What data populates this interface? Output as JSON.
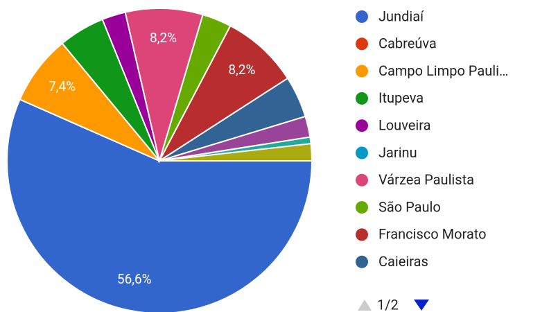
{
  "chart_data": {
    "type": "pie",
    "categories": [
      "Jundiaí",
      "Cabreúva",
      "Campo Limpo Pauli…",
      "Itupeva",
      "Louveira",
      "Jarinu",
      "Várzea Paulista",
      "São Paulo",
      "Francisco Morato",
      "Caieiras",
      null,
      null,
      null
    ],
    "values": [
      56.6,
      0,
      7.4,
      4.9,
      2.5,
      0,
      8.2,
      3.1,
      8.2,
      4.4,
      2.2,
      0.7,
      1.8
    ],
    "value_labels": [
      "56,6%",
      null,
      "7,4%",
      null,
      null,
      null,
      "8,2%",
      null,
      "8,2%",
      null,
      null,
      null,
      null
    ],
    "colors": [
      "#3366cc",
      "#dc3912",
      "#ff9900",
      "#109618",
      "#990099",
      "#0099c6",
      "#dd4477",
      "#66aa00",
      "#b82e2e",
      "#316395",
      "#994499",
      "#22aa99",
      "#aaaa11"
    ],
    "legend": "right",
    "pager": "1/2"
  }
}
